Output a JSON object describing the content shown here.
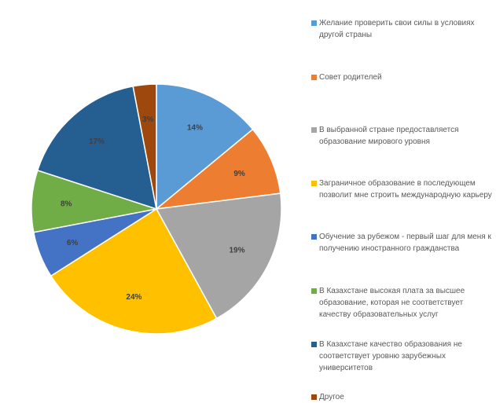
{
  "chart_data": {
    "type": "pie",
    "title": "",
    "start_angle_deg": 0,
    "direction": "clockwise",
    "legend_position": "right",
    "slices": [
      {
        "label": "Желание проверить свои силы в условиях другой страны",
        "value": 14,
        "display": "14%",
        "color": "#5B9BD5"
      },
      {
        "label": "Совет родителей",
        "value": 9,
        "display": "9%",
        "color": "#ED7D31"
      },
      {
        "label": "В выбранной стране предоставляется образование мирового уровня",
        "value": 19,
        "display": "19%",
        "color": "#A5A5A5"
      },
      {
        "label": "Заграничное образование в последующем позволит мне строить международную карьеру",
        "value": 24,
        "display": "24%",
        "color": "#FFC000"
      },
      {
        "label": "Обучение за рубежом - первый шаг для меня к получению иностранного гражданства",
        "value": 6,
        "display": "6%",
        "color": "#4472C4"
      },
      {
        "label": "В Казахстане высокая плата за высшее образование, которая не соответствует качеству образовательных услуг",
        "value": 8,
        "display": "8%",
        "color": "#70AD47"
      },
      {
        "label": "В Казахстане качество образования не соответствует уровню зарубежных университетов",
        "value": 17,
        "display": "17%",
        "color": "#255E91"
      },
      {
        "label": "Другое",
        "value": 3,
        "display": "3%",
        "color": "#9E480E"
      }
    ]
  }
}
